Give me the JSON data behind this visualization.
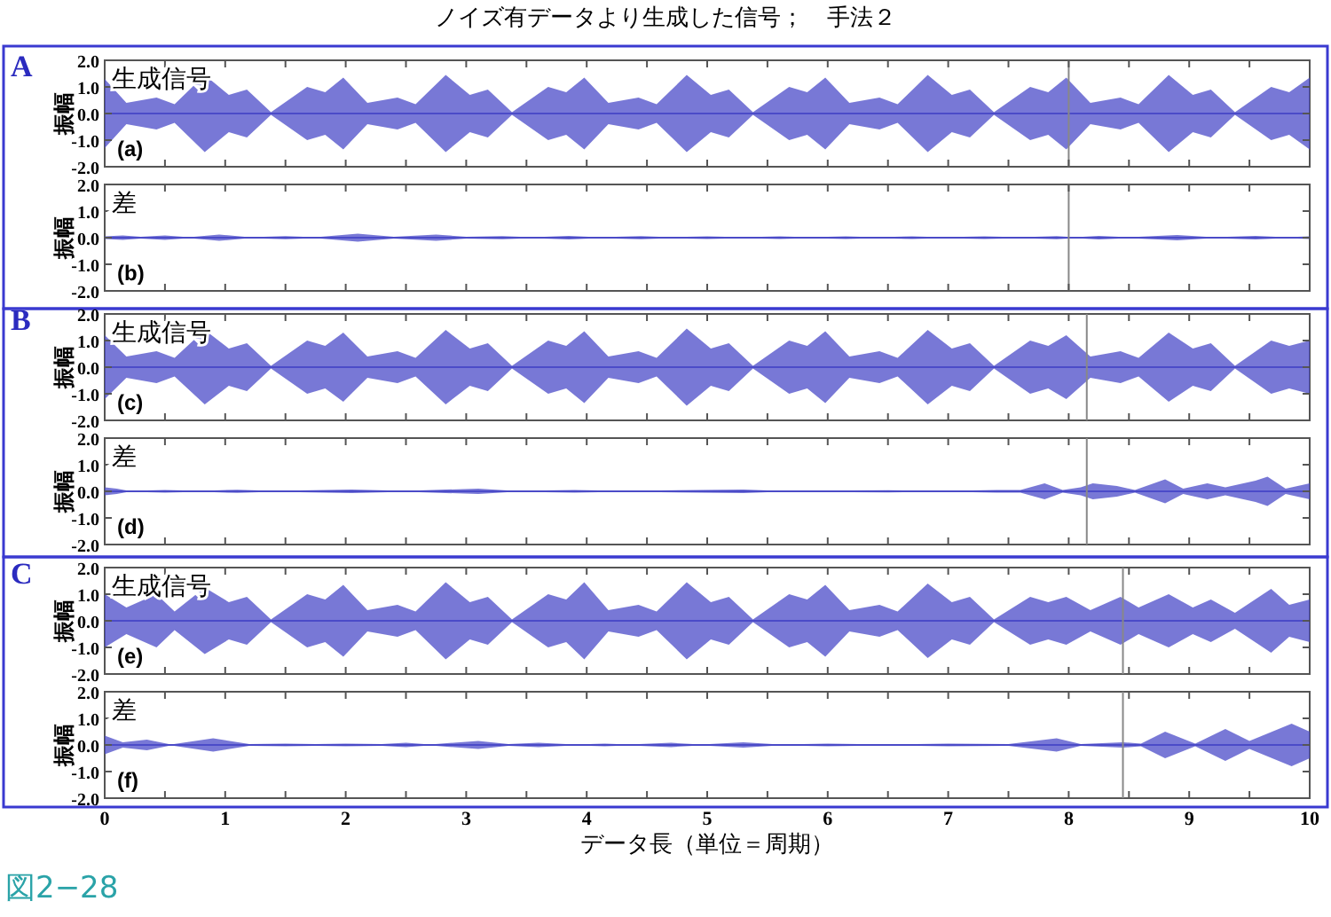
{
  "chart_data": [
    {
      "type": "line",
      "title": "ノイズ有データより生成した信号；　手法２",
      "ylabel": "振幅",
      "annotations": [
        "生成信号",
        "(a)",
        "A"
      ],
      "tick_labels": "y",
      "xlim": [
        0,
        10
      ],
      "ylim": [
        -2,
        2
      ],
      "xticks": [
        0,
        {
          "value": 0.5,
          "label": null
        },
        1,
        {
          "value": 1.5,
          "label": null
        },
        2,
        {
          "value": 2.5,
          "label": null
        },
        3,
        {
          "value": 3.5,
          "label": null
        },
        4,
        {
          "value": 4.5,
          "label": null
        },
        5,
        {
          "value": 5.5,
          "label": null
        },
        6,
        {
          "value": 6.5,
          "label": null
        },
        7,
        {
          "value": 7.5,
          "label": null
        },
        8,
        {
          "value": 8.5,
          "label": null
        },
        9,
        {
          "value": 9.5,
          "label": null
        },
        10
      ],
      "yticks": [
        {
          "value": 2,
          "label": "2.0"
        },
        {
          "value": 1,
          "label": "1.0"
        },
        {
          "value": 0,
          "label": "0.0"
        },
        {
          "value": -1,
          "label": "-1.0"
        },
        {
          "value": -2,
          "label": "-2.0"
        }
      ],
      "ref_lines": [
        {
          "axis": "x",
          "value": 8.0,
          "color": "#888888"
        }
      ],
      "series": [
        {
          "color": "#4b4bc8",
          "x": [
            0,
            0.18,
            0.43,
            0.58,
            0.83,
            1.03,
            1.18,
            1.38,
            1.68,
            1.83,
            1.98,
            2.18,
            2.43,
            2.58,
            2.83,
            3.03,
            3.18,
            3.38,
            3.68,
            3.83,
            3.98,
            4.18,
            4.43,
            4.58,
            4.83,
            5.03,
            5.18,
            5.38,
            5.68,
            5.83,
            5.98,
            6.18,
            6.43,
            6.58,
            6.83,
            7.03,
            7.18,
            7.38,
            7.68,
            7.83,
            7.98,
            8.18,
            8.43,
            8.58,
            8.83,
            9.03,
            9.18,
            9.38,
            9.68,
            9.83,
            10
          ],
          "values": [
            0,
            0,
            0,
            0,
            0,
            0,
            0,
            0,
            0,
            0,
            0,
            0,
            0,
            0,
            0,
            0,
            0,
            0,
            0,
            0,
            0,
            0,
            0,
            0,
            0,
            0,
            0,
            0,
            0,
            0,
            0,
            0,
            0,
            0,
            0,
            0,
            0,
            0,
            0,
            0,
            0,
            0,
            0,
            0,
            0,
            0,
            0,
            0,
            0,
            0,
            0
          ],
          "upper": [
            1.3,
            0.4,
            0.6,
            0.35,
            1.45,
            0.7,
            0.9,
            0.05,
            1.0,
            0.8,
            1.35,
            0.4,
            0.6,
            0.35,
            1.45,
            0.7,
            0.9,
            0.05,
            1.0,
            0.8,
            1.35,
            0.4,
            0.6,
            0.35,
            1.45,
            0.7,
            0.9,
            0.05,
            1.0,
            0.8,
            1.35,
            0.4,
            0.6,
            0.35,
            1.45,
            0.7,
            0.9,
            0.05,
            1.0,
            0.8,
            1.35,
            0.4,
            0.6,
            0.35,
            1.45,
            0.7,
            0.9,
            0.05,
            1.0,
            0.8,
            1.35
          ],
          "lower": [
            -1.3,
            -0.4,
            -0.6,
            -0.35,
            -1.45,
            -0.7,
            -0.9,
            -0.05,
            -1.0,
            -0.8,
            -1.35,
            -0.4,
            -0.6,
            -0.35,
            -1.45,
            -0.7,
            -0.9,
            -0.05,
            -1.0,
            -0.8,
            -1.35,
            -0.4,
            -0.6,
            -0.35,
            -1.45,
            -0.7,
            -0.9,
            -0.05,
            -1.0,
            -0.8,
            -1.35,
            -0.4,
            -0.6,
            -0.35,
            -1.45,
            -0.7,
            -0.9,
            -0.05,
            -1.0,
            -0.8,
            -1.35,
            -0.4,
            -0.6,
            -0.35,
            -1.45,
            -0.7,
            -0.9,
            -0.05,
            -1.0,
            -0.8,
            -1.35
          ]
        }
      ]
    },
    {
      "type": "line",
      "ylabel": "振幅",
      "annotations": [
        "差",
        "(b)"
      ],
      "tick_labels": "y",
      "xlim": [
        0,
        10
      ],
      "ylim": [
        -2,
        2
      ],
      "xticks": [
        0,
        {
          "value": 0.5,
          "label": null
        },
        1,
        {
          "value": 1.5,
          "label": null
        },
        2,
        {
          "value": 2.5,
          "label": null
        },
        3,
        {
          "value": 3.5,
          "label": null
        },
        4,
        {
          "value": 4.5,
          "label": null
        },
        5,
        {
          "value": 5.5,
          "label": null
        },
        6,
        {
          "value": 6.5,
          "label": null
        },
        7,
        {
          "value": 7.5,
          "label": null
        },
        8,
        {
          "value": 8.5,
          "label": null
        },
        9,
        {
          "value": 9.5,
          "label": null
        },
        10
      ],
      "yticks": [
        {
          "value": 2,
          "label": "2.0"
        },
        {
          "value": 1,
          "label": "1.0"
        },
        {
          "value": 0,
          "label": "0.0"
        },
        {
          "value": -1,
          "label": "-1.0"
        },
        {
          "value": -2,
          "label": "-2.0"
        }
      ],
      "ref_lines": [
        {
          "axis": "x",
          "value": 8.0,
          "color": "#888888"
        }
      ],
      "series": [
        {
          "color": "#4b4bc8",
          "x": [
            0,
            0.15,
            0.3,
            0.5,
            0.7,
            0.95,
            1.2,
            1.5,
            1.75,
            2.1,
            2.4,
            2.75,
            3.0,
            3.3,
            3.55,
            3.85,
            4.1,
            4.45,
            4.7,
            5.0,
            5.3,
            5.6,
            5.85,
            6.15,
            6.4,
            6.7,
            6.95,
            7.3,
            7.6,
            7.9,
            8.05,
            8.25,
            8.5,
            8.9,
            9.2,
            9.55,
            9.8,
            10
          ],
          "values": [
            0,
            0,
            0,
            0,
            0,
            0,
            0,
            0,
            0,
            0,
            0,
            0,
            0,
            0,
            0,
            0,
            0,
            0,
            0,
            0,
            0,
            0,
            0,
            0,
            0,
            0,
            0,
            0,
            0,
            0,
            0,
            0,
            0,
            0,
            0,
            0,
            0,
            0
          ],
          "upper": [
            0.05,
            0.08,
            0.03,
            0.08,
            0.02,
            0.12,
            0.02,
            0.06,
            0.02,
            0.15,
            0.03,
            0.12,
            0.03,
            0.06,
            0.02,
            0.07,
            0.02,
            0.06,
            0.02,
            0.05,
            0.02,
            0.05,
            0.02,
            0.05,
            0.02,
            0.05,
            0.02,
            0.05,
            0.02,
            0.06,
            0.02,
            0.07,
            0.02,
            0.1,
            0.02,
            0.07,
            0.02,
            0.05
          ],
          "lower": [
            -0.05,
            -0.08,
            -0.03,
            -0.08,
            -0.02,
            -0.12,
            -0.02,
            -0.06,
            -0.02,
            -0.15,
            -0.03,
            -0.12,
            -0.03,
            -0.06,
            -0.02,
            -0.07,
            -0.02,
            -0.06,
            -0.02,
            -0.05,
            -0.02,
            -0.05,
            -0.02,
            -0.05,
            -0.02,
            -0.05,
            -0.02,
            -0.05,
            -0.02,
            -0.06,
            -0.02,
            -0.07,
            -0.02,
            -0.1,
            -0.02,
            -0.07,
            -0.02,
            -0.05
          ]
        }
      ]
    },
    {
      "type": "line",
      "ylabel": "振幅",
      "annotations": [
        "生成信号",
        "(c)",
        "B"
      ],
      "tick_labels": "y",
      "xlim": [
        0,
        10
      ],
      "ylim": [
        -2,
        2
      ],
      "xticks": [
        0,
        {
          "value": 0.5,
          "label": null
        },
        1,
        {
          "value": 1.5,
          "label": null
        },
        2,
        {
          "value": 2.5,
          "label": null
        },
        3,
        {
          "value": 3.5,
          "label": null
        },
        4,
        {
          "value": 4.5,
          "label": null
        },
        5,
        {
          "value": 5.5,
          "label": null
        },
        6,
        {
          "value": 6.5,
          "label": null
        },
        7,
        {
          "value": 7.5,
          "label": null
        },
        8,
        {
          "value": 8.5,
          "label": null
        },
        9,
        {
          "value": 9.5,
          "label": null
        },
        10
      ],
      "yticks": [
        {
          "value": 2,
          "label": "2.0"
        },
        {
          "value": 1,
          "label": "1.0"
        },
        {
          "value": 0,
          "label": "0.0"
        },
        {
          "value": -1,
          "label": "-1.0"
        },
        {
          "value": -2,
          "label": "-2.0"
        }
      ],
      "ref_lines": [
        {
          "axis": "x",
          "value": 8.15,
          "color": "#888888"
        }
      ],
      "series": [
        {
          "color": "#4b4bc8",
          "x": [
            0,
            0.18,
            0.43,
            0.58,
            0.83,
            1.03,
            1.18,
            1.38,
            1.68,
            1.83,
            1.98,
            2.18,
            2.43,
            2.58,
            2.83,
            3.03,
            3.18,
            3.38,
            3.68,
            3.83,
            3.98,
            4.18,
            4.43,
            4.58,
            4.83,
            5.03,
            5.18,
            5.38,
            5.68,
            5.83,
            5.98,
            6.18,
            6.43,
            6.58,
            6.83,
            7.03,
            7.18,
            7.38,
            7.68,
            7.83,
            7.98,
            8.18,
            8.43,
            8.58,
            8.83,
            9.03,
            9.18,
            9.38,
            9.68,
            9.83,
            10
          ],
          "values": [
            0,
            0,
            0,
            0,
            0,
            0,
            0,
            0,
            0,
            0,
            0,
            0,
            0,
            0,
            0,
            0,
            0,
            0,
            0,
            0,
            0,
            0,
            0,
            0,
            0,
            0,
            0,
            0,
            0,
            0,
            0,
            0,
            0,
            0,
            0,
            0,
            0,
            0,
            0,
            0,
            0,
            0,
            0,
            0,
            0,
            0,
            0,
            0,
            0,
            0,
            0
          ],
          "upper": [
            1.2,
            0.4,
            0.6,
            0.35,
            1.4,
            0.7,
            0.9,
            0.05,
            1.0,
            0.8,
            1.3,
            0.4,
            0.6,
            0.35,
            1.4,
            0.7,
            0.9,
            0.05,
            1.0,
            0.8,
            1.35,
            0.4,
            0.6,
            0.35,
            1.45,
            0.7,
            0.9,
            0.05,
            1.0,
            0.8,
            1.35,
            0.4,
            0.6,
            0.35,
            1.4,
            0.7,
            0.9,
            0.05,
            1.0,
            0.8,
            1.2,
            0.4,
            0.6,
            0.35,
            1.3,
            0.7,
            0.9,
            0.05,
            1.0,
            0.8,
            1.0
          ],
          "lower": [
            -1.2,
            -0.4,
            -0.6,
            -0.35,
            -1.4,
            -0.7,
            -0.9,
            -0.05,
            -1.0,
            -0.8,
            -1.3,
            -0.4,
            -0.6,
            -0.35,
            -1.4,
            -0.7,
            -0.9,
            -0.05,
            -1.0,
            -0.8,
            -1.35,
            -0.4,
            -0.6,
            -0.35,
            -1.45,
            -0.7,
            -0.9,
            -0.05,
            -1.0,
            -0.8,
            -1.35,
            -0.4,
            -0.6,
            -0.35,
            -1.4,
            -0.7,
            -0.9,
            -0.05,
            -1.0,
            -0.8,
            -1.2,
            -0.4,
            -0.6,
            -0.35,
            -1.3,
            -0.7,
            -0.9,
            -0.05,
            -1.0,
            -0.8,
            -1.0
          ]
        }
      ]
    },
    {
      "type": "line",
      "ylabel": "振幅",
      "annotations": [
        "差",
        "(d)"
      ],
      "tick_labels": "y",
      "xlim": [
        0,
        10
      ],
      "ylim": [
        -2,
        2
      ],
      "xticks": [
        0,
        {
          "value": 0.5,
          "label": null
        },
        1,
        {
          "value": 1.5,
          "label": null
        },
        2,
        {
          "value": 2.5,
          "label": null
        },
        3,
        {
          "value": 3.5,
          "label": null
        },
        4,
        {
          "value": 4.5,
          "label": null
        },
        5,
        {
          "value": 5.5,
          "label": null
        },
        6,
        {
          "value": 6.5,
          "label": null
        },
        7,
        {
          "value": 7.5,
          "label": null
        },
        8,
        {
          "value": 8.5,
          "label": null
        },
        9,
        {
          "value": 9.5,
          "label": null
        },
        10
      ],
      "yticks": [
        {
          "value": 2,
          "label": "2.0"
        },
        {
          "value": 1,
          "label": "1.0"
        },
        {
          "value": 0,
          "label": "0.0"
        },
        {
          "value": -1,
          "label": "-1.0"
        },
        {
          "value": -2,
          "label": "-2.0"
        }
      ],
      "ref_lines": [
        {
          "axis": "x",
          "value": 8.15,
          "color": "#888888"
        }
      ],
      "series": [
        {
          "color": "#4b4bc8",
          "x": [
            0,
            0.1,
            0.2,
            0.5,
            0.8,
            1.1,
            1.4,
            2.05,
            2.5,
            3.1,
            3.4,
            3.9,
            4.3,
            5.3,
            5.6,
            6.5,
            7.0,
            7.4,
            7.6,
            7.8,
            7.95,
            8.1,
            8.2,
            8.4,
            8.55,
            8.8,
            8.95,
            9.15,
            9.3,
            9.55,
            9.65,
            9.8,
            10
          ],
          "values": [
            0,
            0,
            0,
            0,
            0,
            0,
            0,
            0,
            0,
            0,
            0,
            0,
            0,
            0,
            0,
            0,
            0,
            0,
            0,
            0,
            0,
            0,
            0,
            0,
            0,
            0,
            0,
            0,
            0,
            0,
            0,
            0,
            0
          ],
          "upper": [
            0.15,
            0.1,
            0.02,
            0.05,
            0.02,
            0.06,
            0.02,
            0.07,
            0.02,
            0.1,
            0.02,
            0.05,
            0.02,
            0.07,
            0.02,
            0.04,
            0.02,
            0.05,
            0.05,
            0.3,
            0.05,
            0.15,
            0.3,
            0.2,
            0.05,
            0.45,
            0.1,
            0.3,
            0.15,
            0.4,
            0.55,
            0.1,
            0.3
          ],
          "lower": [
            -0.15,
            -0.1,
            -0.02,
            -0.05,
            -0.02,
            -0.06,
            -0.02,
            -0.07,
            -0.02,
            -0.1,
            -0.02,
            -0.05,
            -0.02,
            -0.07,
            -0.02,
            -0.04,
            -0.02,
            -0.05,
            -0.05,
            -0.3,
            -0.05,
            -0.15,
            -0.3,
            -0.2,
            -0.05,
            -0.45,
            -0.1,
            -0.3,
            -0.15,
            -0.4,
            -0.55,
            -0.1,
            -0.3
          ]
        }
      ]
    },
    {
      "type": "line",
      "ylabel": "振幅",
      "annotations": [
        "生成信号",
        "(e)",
        "C"
      ],
      "tick_labels": "y",
      "xlim": [
        0,
        10
      ],
      "ylim": [
        -2,
        2
      ],
      "xticks": [
        0,
        {
          "value": 0.5,
          "label": null
        },
        1,
        {
          "value": 1.5,
          "label": null
        },
        2,
        {
          "value": 2.5,
          "label": null
        },
        3,
        {
          "value": 3.5,
          "label": null
        },
        4,
        {
          "value": 4.5,
          "label": null
        },
        5,
        {
          "value": 5.5,
          "label": null
        },
        6,
        {
          "value": 6.5,
          "label": null
        },
        7,
        {
          "value": 7.5,
          "label": null
        },
        8,
        {
          "value": 8.5,
          "label": null
        },
        9,
        {
          "value": 9.5,
          "label": null
        },
        10
      ],
      "yticks": [
        {
          "value": 2,
          "label": "2.0"
        },
        {
          "value": 1,
          "label": "1.0"
        },
        {
          "value": 0,
          "label": "0.0"
        },
        {
          "value": -1,
          "label": "-1.0"
        },
        {
          "value": -2,
          "label": "-2.0"
        }
      ],
      "ref_lines": [
        {
          "axis": "x",
          "value": 8.45,
          "color": "#888888"
        }
      ],
      "series": [
        {
          "color": "#4b4bc8",
          "x": [
            0,
            0.18,
            0.43,
            0.58,
            0.83,
            1.03,
            1.18,
            1.38,
            1.68,
            1.83,
            1.98,
            2.18,
            2.43,
            2.58,
            2.83,
            3.03,
            3.18,
            3.38,
            3.68,
            3.83,
            3.98,
            4.18,
            4.43,
            4.58,
            4.83,
            5.03,
            5.18,
            5.38,
            5.68,
            5.83,
            5.98,
            6.18,
            6.43,
            6.58,
            6.83,
            7.03,
            7.18,
            7.38,
            7.68,
            7.83,
            7.98,
            8.18,
            8.43,
            8.58,
            8.83,
            9.03,
            9.18,
            9.38,
            9.68,
            9.83,
            10
          ],
          "values": [
            0,
            0,
            0,
            0,
            0,
            0,
            0,
            0,
            0,
            0,
            0,
            0,
            0,
            0,
            0,
            0,
            0,
            0,
            0,
            0,
            0,
            0,
            0,
            0,
            0,
            0,
            0,
            0,
            0,
            0,
            0,
            0,
            0,
            0,
            0,
            0,
            0,
            0,
            0,
            0,
            0,
            0,
            0,
            0,
            0,
            0,
            0,
            0,
            0,
            0,
            0
          ],
          "upper": [
            1.0,
            0.5,
            1.0,
            0.35,
            1.25,
            0.7,
            0.9,
            0.05,
            1.0,
            0.8,
            1.35,
            0.4,
            0.6,
            0.35,
            1.45,
            0.7,
            0.9,
            0.05,
            1.0,
            0.8,
            1.45,
            0.4,
            0.6,
            0.35,
            1.45,
            0.7,
            0.9,
            0.05,
            1.0,
            0.8,
            1.35,
            0.4,
            0.6,
            0.35,
            1.4,
            0.7,
            0.9,
            0.05,
            0.9,
            0.7,
            0.9,
            0.4,
            0.9,
            0.5,
            1.0,
            0.5,
            0.8,
            0.3,
            1.2,
            0.6,
            0.8
          ],
          "lower": [
            -1.0,
            -0.5,
            -1.0,
            -0.35,
            -1.25,
            -0.7,
            -0.9,
            -0.05,
            -1.0,
            -0.8,
            -1.35,
            -0.4,
            -0.6,
            -0.35,
            -1.45,
            -0.7,
            -0.9,
            -0.05,
            -1.0,
            -0.8,
            -1.45,
            -0.4,
            -0.6,
            -0.35,
            -1.45,
            -0.7,
            -0.9,
            -0.05,
            -1.0,
            -0.8,
            -1.35,
            -0.4,
            -0.6,
            -0.35,
            -1.4,
            -0.7,
            -0.9,
            -0.05,
            -0.9,
            -0.7,
            -0.9,
            -0.4,
            -0.9,
            -0.5,
            -1.0,
            -0.5,
            -0.8,
            -0.3,
            -1.2,
            -0.6,
            -0.8
          ]
        }
      ]
    },
    {
      "type": "line",
      "ylabel": "振幅",
      "xlabel": "データ長（単位＝周期）",
      "annotations": [
        "差",
        "(f)",
        "図2−28"
      ],
      "xlim": [
        0,
        10
      ],
      "ylim": [
        -2,
        2
      ],
      "xticks": [
        0,
        {
          "value": 0.5,
          "label": null
        },
        1,
        {
          "value": 1.5,
          "label": null
        },
        2,
        {
          "value": 2.5,
          "label": null
        },
        3,
        {
          "value": 3.5,
          "label": null
        },
        4,
        {
          "value": 4.5,
          "label": null
        },
        5,
        {
          "value": 5.5,
          "label": null
        },
        6,
        {
          "value": 6.5,
          "label": null
        },
        7,
        {
          "value": 7.5,
          "label": null
        },
        8,
        {
          "value": 8.5,
          "label": null
        },
        9,
        {
          "value": 9.5,
          "label": null
        },
        10
      ],
      "yticks": [
        {
          "value": 2,
          "label": "2.0"
        },
        {
          "value": 1,
          "label": "1.0"
        },
        {
          "value": 0,
          "label": "0.0"
        },
        {
          "value": -1,
          "label": "-1.0"
        },
        {
          "value": -2,
          "label": "-2.0"
        }
      ],
      "ref_lines": [
        {
          "axis": "x",
          "value": 8.45,
          "color": "#888888"
        }
      ],
      "series": [
        {
          "color": "#4b4bc8",
          "x": [
            0,
            0.15,
            0.35,
            0.55,
            0.9,
            1.2,
            1.5,
            1.75,
            2.0,
            2.3,
            2.5,
            2.7,
            3.1,
            3.35,
            3.6,
            3.9,
            4.15,
            4.35,
            4.7,
            4.95,
            5.3,
            5.6,
            6.0,
            6.5,
            7.0,
            7.5,
            7.9,
            8.1,
            8.45,
            8.6,
            8.8,
            9.05,
            9.3,
            9.5,
            9.85,
            10
          ],
          "values": [
            0,
            0,
            0,
            0,
            0,
            0,
            0,
            0,
            0,
            0,
            0,
            0,
            0,
            0,
            0,
            0,
            0,
            0,
            0,
            0,
            0,
            0,
            0,
            0,
            0,
            0,
            0,
            0,
            0,
            0,
            0,
            0,
            0,
            0,
            0,
            0
          ],
          "upper": [
            0.35,
            0.1,
            0.2,
            0.02,
            0.25,
            0.03,
            0.05,
            0.03,
            0.05,
            0.03,
            0.08,
            0.02,
            0.15,
            0.03,
            0.08,
            0.02,
            0.05,
            0.02,
            0.08,
            0.02,
            0.1,
            0.02,
            0.05,
            0.02,
            0.05,
            0.03,
            0.25,
            0.03,
            0.1,
            0.05,
            0.5,
            0.05,
            0.6,
            0.15,
            0.8,
            0.5
          ],
          "lower": [
            -0.35,
            -0.1,
            -0.2,
            -0.02,
            -0.25,
            -0.03,
            -0.05,
            -0.03,
            -0.05,
            -0.03,
            -0.08,
            -0.02,
            -0.15,
            -0.03,
            -0.08,
            -0.02,
            -0.05,
            -0.02,
            -0.08,
            -0.02,
            -0.1,
            -0.02,
            -0.05,
            -0.02,
            -0.05,
            -0.03,
            -0.25,
            -0.03,
            -0.1,
            -0.05,
            -0.5,
            -0.05,
            -0.6,
            -0.15,
            -0.8,
            -0.5
          ]
        }
      ]
    }
  ]
}
